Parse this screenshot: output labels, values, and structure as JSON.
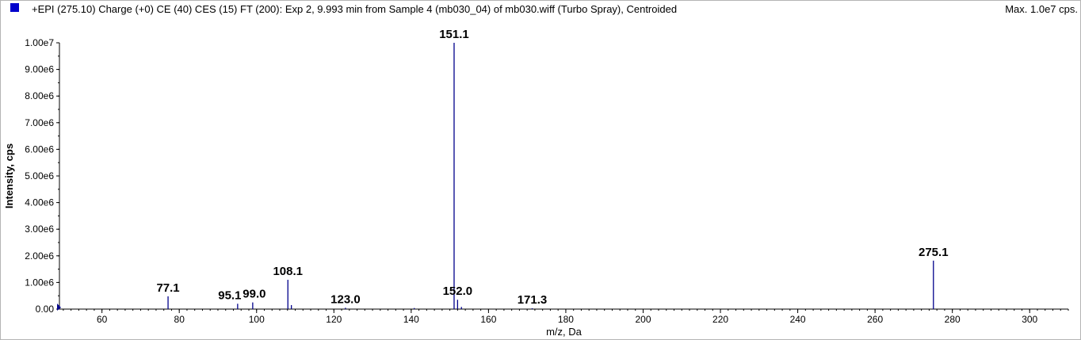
{
  "header": {
    "title": "+EPI (275.10) Charge (+0) CE (40) CES (15) FT (200): Exp 2, 9.993 min from Sample 4 (mb030_04) of mb030.wiff (Turbo Spray), Centroided",
    "max_label": "Max. 1.0e7 cps."
  },
  "colors": {
    "series": "#00008b",
    "swatch": "#0000cc"
  },
  "chart_data": {
    "type": "bar",
    "title": "+EPI (275.10) Charge (+0) CE (40) CES (15) FT (200): Exp 2, 9.993 min from Sample 4 (mb030_04) of mb030.wiff (Turbo Spray), Centroided",
    "xlabel": "m/z, Da",
    "ylabel": "Intensity, cps",
    "xlim": [
      49,
      310
    ],
    "ylim": [
      0,
      10000000
    ],
    "x_ticks": [
      60,
      80,
      100,
      120,
      140,
      160,
      180,
      200,
      220,
      240,
      260,
      280,
      300
    ],
    "y_ticks": [
      {
        "value": 0,
        "label": "0.00"
      },
      {
        "value": 1000000,
        "label": "1.00e6"
      },
      {
        "value": 2000000,
        "label": "2.00e6"
      },
      {
        "value": 3000000,
        "label": "3.00e6"
      },
      {
        "value": 4000000,
        "label": "4.00e6"
      },
      {
        "value": 5000000,
        "label": "5.00e6"
      },
      {
        "value": 6000000,
        "label": "6.00e6"
      },
      {
        "value": 7000000,
        "label": "7.00e6"
      },
      {
        "value": 8000000,
        "label": "8.00e6"
      },
      {
        "value": 9000000,
        "label": "9.00e6"
      },
      {
        "value": 10000000,
        "label": "1.00e7"
      }
    ],
    "peaks": [
      {
        "x": 77.1,
        "y": 480000
      },
      {
        "x": 95.1,
        "y": 200000
      },
      {
        "x": 99.0,
        "y": 250000
      },
      {
        "x": 108.1,
        "y": 1100000
      },
      {
        "x": 109.0,
        "y": 150000
      },
      {
        "x": 123.0,
        "y": 50000
      },
      {
        "x": 140.8,
        "y": 40000
      },
      {
        "x": 151.1,
        "y": 10000000
      },
      {
        "x": 152.0,
        "y": 350000
      },
      {
        "x": 153.0,
        "y": 80000
      },
      {
        "x": 171.3,
        "y": 30000
      },
      {
        "x": 275.1,
        "y": 1820000
      }
    ],
    "labels": [
      {
        "text": "77.1",
        "x": 77.1,
        "y": 480000
      },
      {
        "text": "95.1",
        "x": 95.1,
        "y": 200000
      },
      {
        "text": "99.0",
        "x": 99.0,
        "y": 250000
      },
      {
        "text": "108.1",
        "x": 108.1,
        "y": 1100000
      },
      {
        "text": "123.0",
        "x": 123.0,
        "y": 50000
      },
      {
        "text": "151.1",
        "x": 151.1,
        "y": 10000000
      },
      {
        "text": "152.0",
        "x": 152.0,
        "y": 350000
      },
      {
        "text": "171.3",
        "x": 171.3,
        "y": 30000
      },
      {
        "text": "275.1",
        "x": 275.1,
        "y": 1820000
      }
    ],
    "grid": false,
    "legend": "none"
  }
}
